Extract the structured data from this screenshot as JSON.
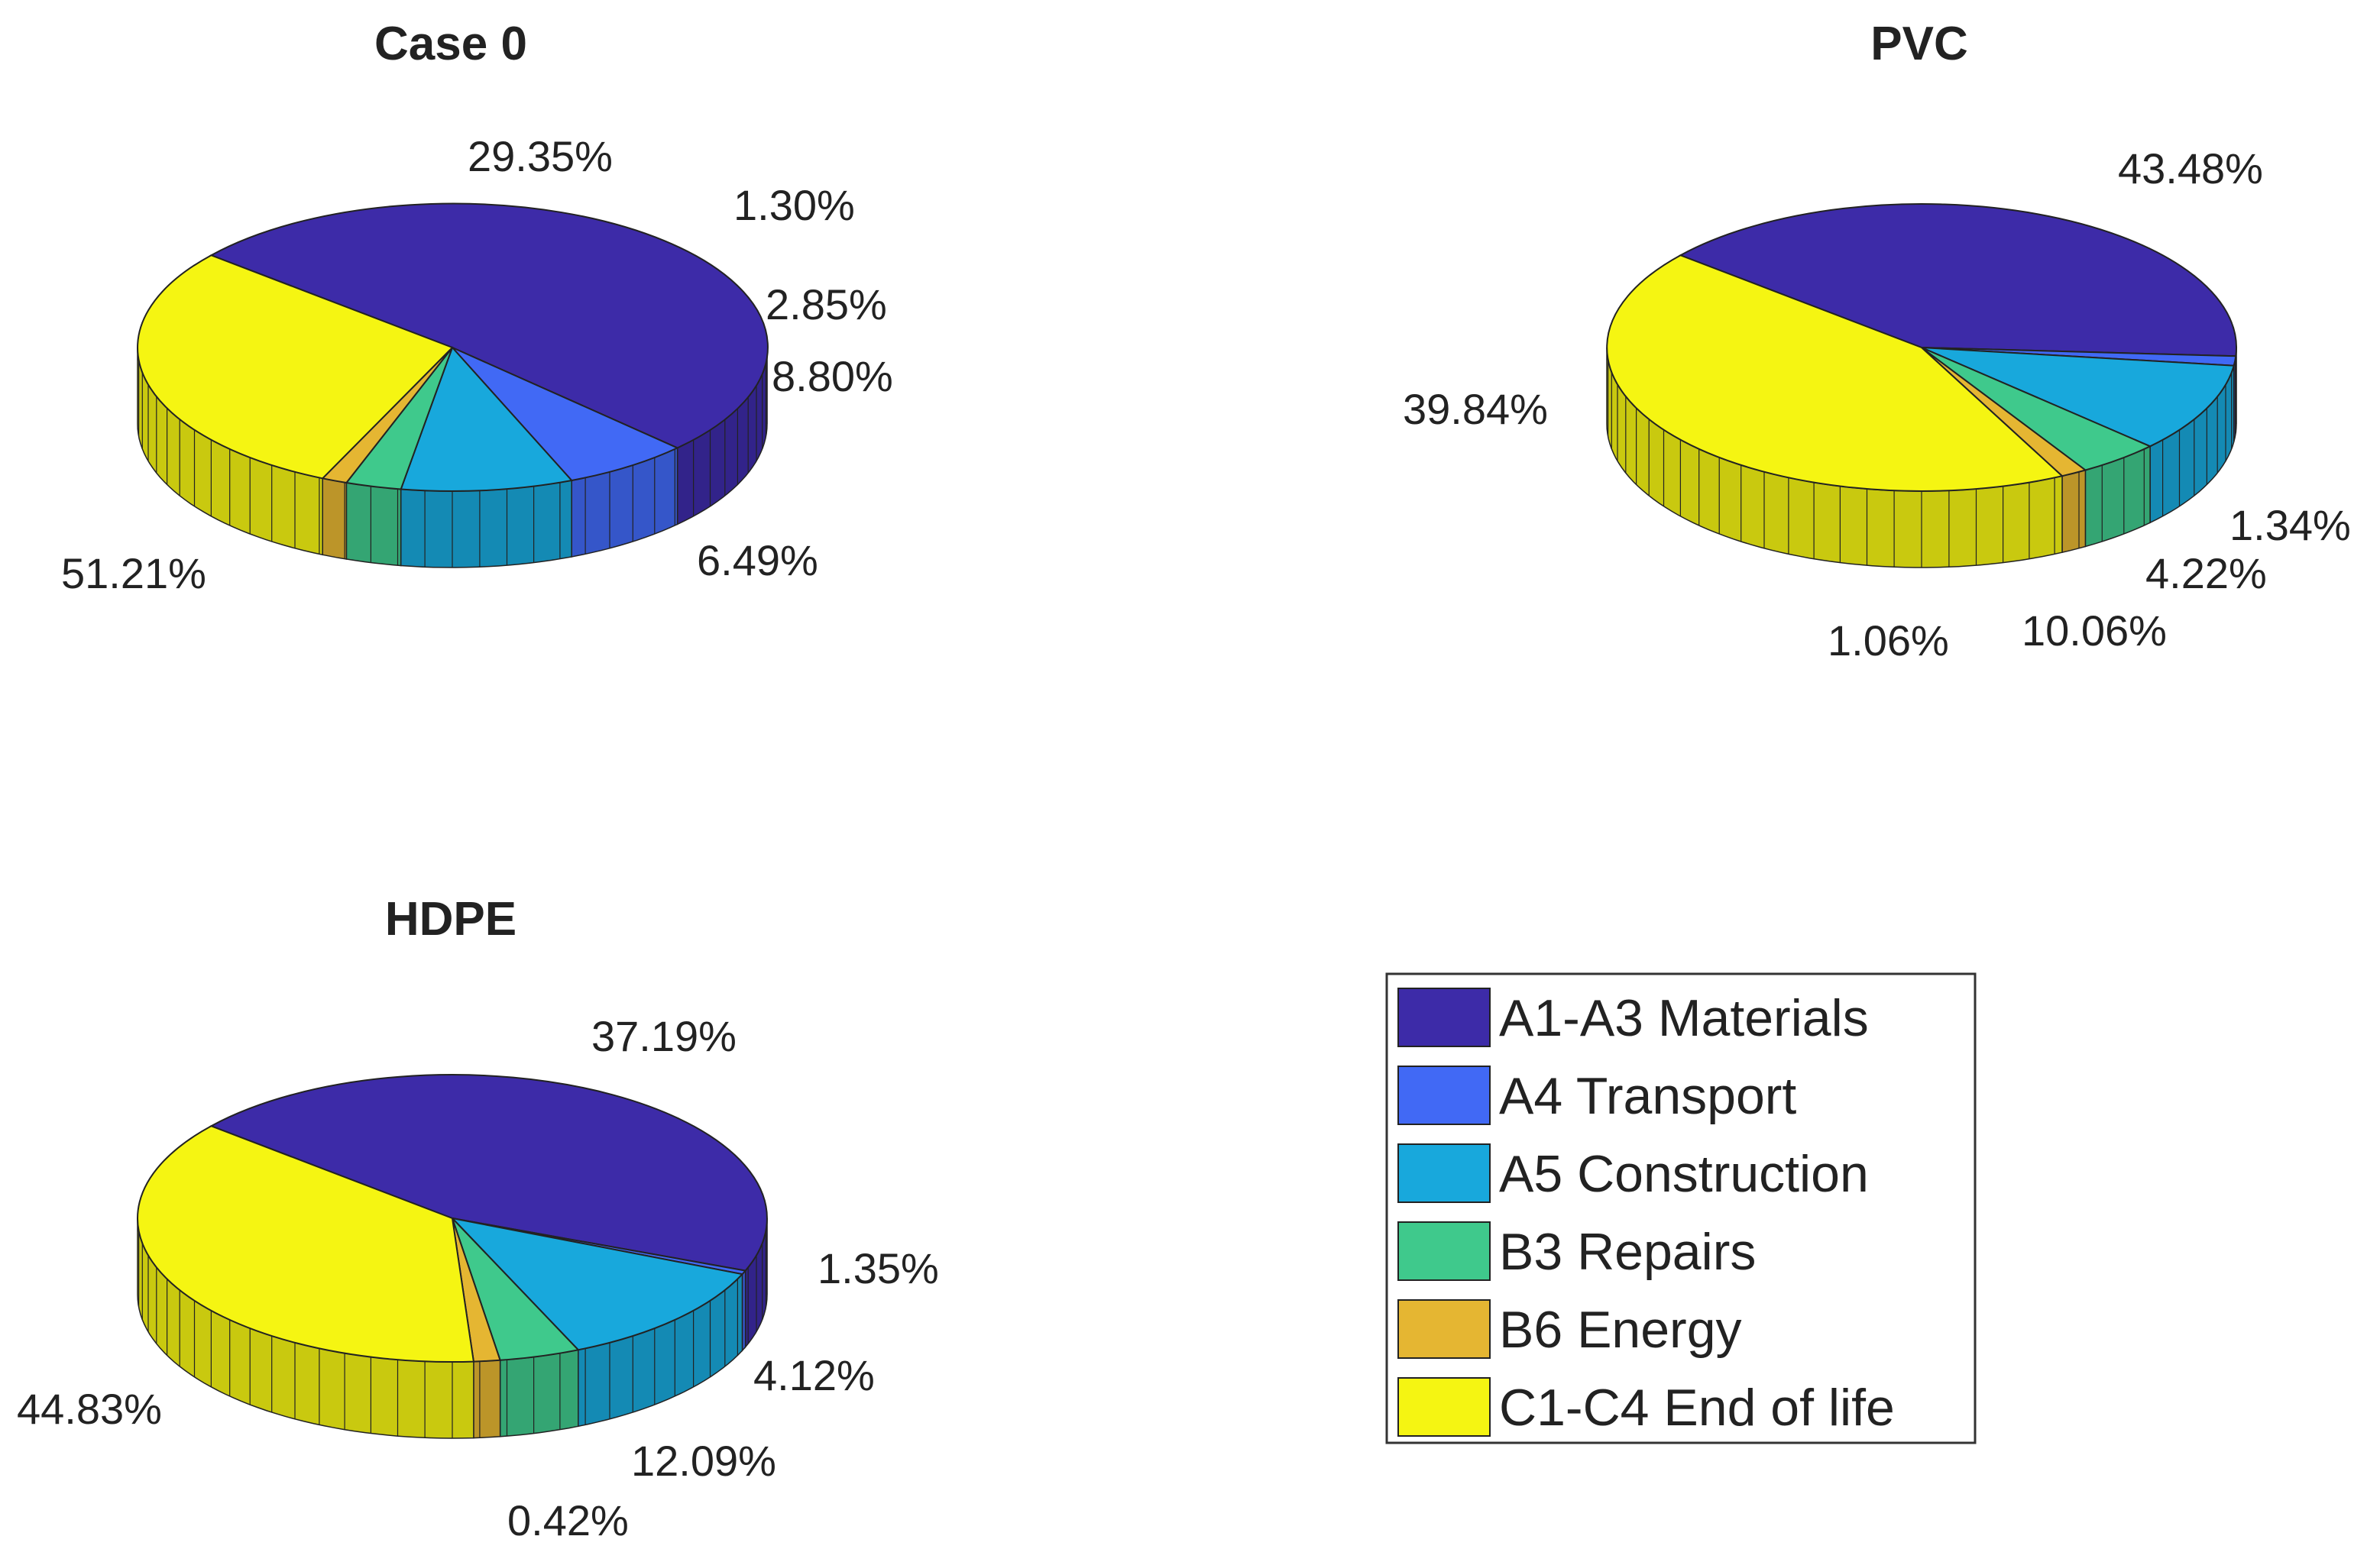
{
  "chart_data": [
    {
      "type": "pie",
      "title": "Case 0",
      "categories": [
        "A1-A3 Materials",
        "A4 Transport",
        "A5 Construction",
        "B3 Repairs",
        "B6 Energy",
        "C1-C4 End of life"
      ],
      "values": [
        51.21,
        6.49,
        8.8,
        2.85,
        1.3,
        29.35
      ],
      "labels": [
        "51.21%",
        "6.49%",
        "8.80%",
        "2.85%",
        "1.30%",
        "29.35%"
      ]
    },
    {
      "type": "pie",
      "title": "PVC",
      "categories": [
        "A1-A3 Materials",
        "A4 Transport",
        "A5 Construction",
        "B3 Repairs",
        "B6 Energy",
        "C1-C4 End of life"
      ],
      "values": [
        39.84,
        1.06,
        10.06,
        4.22,
        1.34,
        43.48
      ],
      "labels": [
        "39.84%",
        "1.06%",
        "10.06%",
        "4.22%",
        "1.34%",
        "43.48%"
      ]
    },
    {
      "type": "pie",
      "title": "HDPE",
      "categories": [
        "A1-A3 Materials",
        "A4 Transport",
        "A5 Construction",
        "B3 Repairs",
        "B6 Energy",
        "C1-C4 End of life"
      ],
      "values": [
        44.83,
        0.42,
        12.09,
        4.12,
        1.35,
        37.19
      ],
      "labels": [
        "44.83%",
        "0.42%",
        "12.09%",
        "4.12%",
        "1.35%",
        "37.19%"
      ]
    }
  ],
  "legend": {
    "placement": "bottom-right",
    "items": [
      {
        "label": "A1-A3 Materials",
        "color": "#3d2ba8"
      },
      {
        "label": "A4 Transport",
        "color": "#4169f5"
      },
      {
        "label": "A5 Construction",
        "color": "#18a8dc"
      },
      {
        "label": "B3 Repairs",
        "color": "#3fc98c"
      },
      {
        "label": "B6 Energy",
        "color": "#e5b632"
      },
      {
        "label": "C1-C4 End of life",
        "color": "#f5f512"
      }
    ]
  }
}
